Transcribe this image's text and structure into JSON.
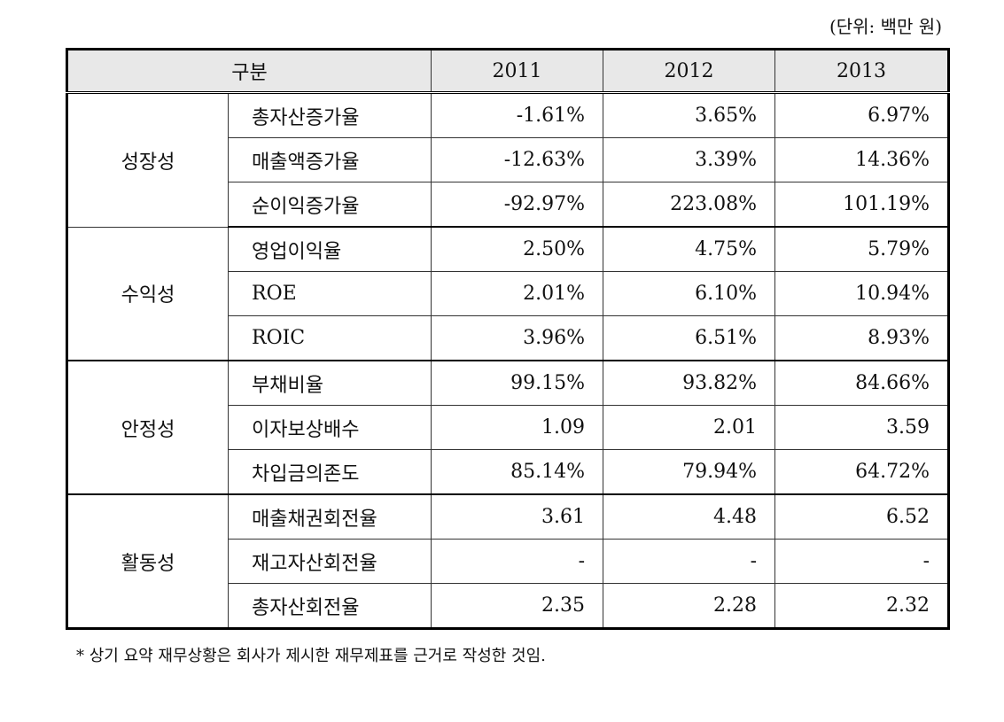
{
  "unit_label": "(단위: 백만 원)",
  "table": {
    "header": {
      "category": "구분",
      "years": [
        "2011",
        "2012",
        "2013"
      ]
    },
    "groups": [
      {
        "name": "성장성",
        "rows": [
          {
            "item": "총자산증가율",
            "values": [
              "-1.61%",
              "3.65%",
              "6.97%"
            ]
          },
          {
            "item": "매출액증가율",
            "values": [
              "-12.63%",
              "3.39%",
              "14.36%"
            ]
          },
          {
            "item": "순이익증가율",
            "values": [
              "-92.97%",
              "223.08%",
              "101.19%"
            ]
          }
        ]
      },
      {
        "name": "수익성",
        "rows": [
          {
            "item": "영업이익율",
            "values": [
              "2.50%",
              "4.75%",
              "5.79%"
            ]
          },
          {
            "item": "ROE",
            "values": [
              "2.01%",
              "6.10%",
              "10.94%"
            ]
          },
          {
            "item": "ROIC",
            "values": [
              "3.96%",
              "6.51%",
              "8.93%"
            ]
          }
        ]
      },
      {
        "name": "안정성",
        "rows": [
          {
            "item": "부채비율",
            "values": [
              "99.15%",
              "93.82%",
              "84.66%"
            ]
          },
          {
            "item": "이자보상배수",
            "values": [
              "1.09",
              "2.01",
              "3.59"
            ]
          },
          {
            "item": "차입금의존도",
            "values": [
              "85.14%",
              "79.94%",
              "64.72%"
            ]
          }
        ]
      },
      {
        "name": "활동성",
        "rows": [
          {
            "item": "매출채권회전율",
            "values": [
              "3.61",
              "4.48",
              "6.52"
            ]
          },
          {
            "item": "재고자산회전율",
            "values": [
              "-",
              "-",
              "-"
            ]
          },
          {
            "item": "총자산회전율",
            "values": [
              "2.35",
              "2.28",
              "2.32"
            ]
          }
        ]
      }
    ]
  },
  "footnote": "* 상기 요약 재무상황은 회사가 제시한 재무제표를 근거로 작성한 것임."
}
